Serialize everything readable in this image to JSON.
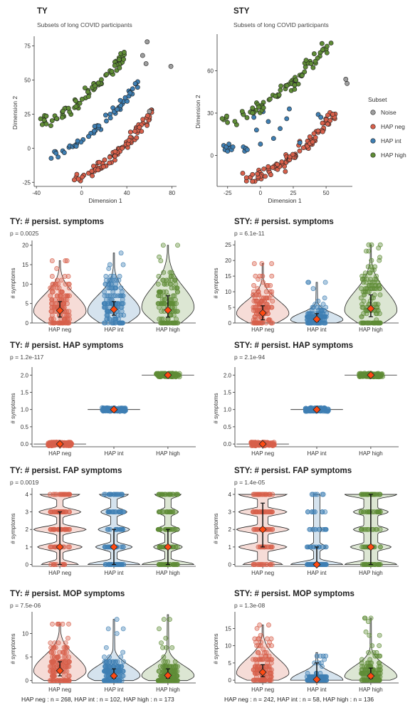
{
  "colors": {
    "noise": "#9e9e9e",
    "hap_neg": "#d8604b",
    "hap_int": "#3f7fb3",
    "hap_high": "#5f8c36",
    "mean": "#ff4a12"
  },
  "legend": {
    "title": "Subset",
    "items": [
      {
        "label": "Noise",
        "color": "#9e9e9e"
      },
      {
        "label": "HAP neg",
        "color": "#d8604b"
      },
      {
        "label": "HAP int",
        "color": "#3f7fb3"
      },
      {
        "label": "HAP high",
        "color": "#5f8c36"
      }
    ]
  },
  "footers": {
    "ty": "HAP neg : n =  268, HAP int : n =  102, HAP high : n =  173",
    "sty": "HAP neg : n =  242, HAP int : n =  58, HAP high : n =  136"
  },
  "chart_data": [
    {
      "type": "scatter",
      "title": "TY",
      "subtitle": "Subsets of long COVID participants",
      "xlabel": "Dimension 1",
      "ylabel": "Dimension 2",
      "xlim": [
        -42,
        84
      ],
      "ylim": [
        -28,
        80
      ],
      "xticks": [
        -40,
        0,
        40,
        80
      ],
      "yticks": [
        -25,
        0,
        25,
        50,
        75
      ],
      "series": [
        {
          "name": "Noise",
          "key": "noise",
          "points": [
            [
              54,
              68
            ],
            [
              57,
              62
            ],
            [
              60,
              27
            ],
            [
              58,
              78
            ],
            [
              79,
              60
            ]
          ]
        },
        {
          "name": "HAP neg",
          "key": "hap_neg",
          "curve": {
            "x0": -10,
            "y0": -22,
            "x1": 63,
            "y1": 27,
            "pow": 1.7
          },
          "n": 90,
          "spread": 2.2
        },
        {
          "name": "HAP int",
          "key": "hap_int",
          "curve": {
            "x0": -26,
            "y0": -3,
            "x1": 50,
            "y1": 47,
            "pow": 1.6
          },
          "n": 55,
          "spread": 1.8
        },
        {
          "name": "HAP high",
          "key": "hap_high",
          "curve": {
            "x0": -38,
            "y0": 19,
            "x1": 40,
            "y1": 71,
            "pow": 1.7
          },
          "n": 75,
          "spread": 2.0
        }
      ]
    },
    {
      "type": "scatter",
      "title": "STY",
      "subtitle": "Subsets of long COVID participants",
      "xlabel": "Dimension 1",
      "ylabel": "Dimension 2",
      "xlim": [
        -33,
        70
      ],
      "ylim": [
        -22,
        84
      ],
      "xticks": [
        -25,
        0,
        25,
        50
      ],
      "yticks": [
        0,
        30,
        60
      ],
      "series": [
        {
          "name": "Noise",
          "key": "noise",
          "points": [
            [
              65,
              54
            ],
            [
              66,
              51
            ]
          ]
        },
        {
          "name": "HAP neg",
          "key": "hap_neg",
          "curve": {
            "x0": -13,
            "y0": -15,
            "x1": 57,
            "y1": 30,
            "pow": 1.8
          },
          "n": 95,
          "spread": 2.2
        },
        {
          "name": "HAP int",
          "key": "hap_int",
          "points": [
            [
              -28,
              7
            ],
            [
              -27,
              4
            ],
            [
              -26,
              6
            ],
            [
              -25,
              3
            ],
            [
              -24,
              8
            ],
            [
              -23,
              5
            ],
            [
              -22,
              4
            ],
            [
              -21,
              6
            ],
            [
              -13,
              6
            ],
            [
              -12,
              3
            ],
            [
              -11,
              5
            ],
            [
              -10,
              4
            ],
            [
              -5,
              27
            ],
            [
              -3,
              18
            ],
            [
              0,
              8
            ],
            [
              2,
              31
            ],
            [
              6,
              24
            ],
            [
              10,
              12
            ],
            [
              15,
              19
            ],
            [
              20,
              26
            ],
            [
              22,
              33
            ],
            [
              30,
              9
            ],
            [
              44,
              29
            ],
            [
              46,
              27
            ]
          ]
        },
        {
          "name": "HAP high",
          "key": "hap_high",
          "curve": {
            "x0": -31,
            "y0": 25,
            "x1": 52,
            "y1": 80,
            "pow": 1.8
          },
          "n": 80,
          "spread": 2.2
        }
      ]
    },
    {
      "type": "violin",
      "title": "TY: # persist. symptoms",
      "pvalue": "p = 0.0025",
      "ylabel": "# symptoms",
      "categories": [
        "HAP neg",
        "HAP int",
        "HAP high"
      ],
      "ylim": [
        0,
        20.5
      ],
      "yticks": [
        0,
        5,
        10,
        15,
        20
      ],
      "groups": [
        {
          "key": "hap_neg",
          "median": 3,
          "q1": 1,
          "q3": 6,
          "min": 0,
          "max": 16,
          "mean": 3.2,
          "whisker_lo": 1.5,
          "whisker_hi": 5.5
        },
        {
          "key": "hap_int",
          "median": 3,
          "q1": 1,
          "q3": 6,
          "min": 0,
          "max": 18,
          "mean": 3.5,
          "whisker_lo": 2,
          "whisker_hi": 5.5
        },
        {
          "key": "hap_high",
          "median": 4,
          "q1": 2,
          "q3": 8,
          "min": 0,
          "max": 20,
          "mean": 3.3,
          "whisker_lo": 1.5,
          "whisker_hi": 7
        }
      ]
    },
    {
      "type": "violin",
      "title": "STY: # persist. symptoms",
      "pvalue": "p = 6.1e-11",
      "ylabel": "# symptoms",
      "categories": [
        "HAP neg",
        "HAP int",
        "HAP high"
      ],
      "ylim": [
        0,
        25.5
      ],
      "yticks": [
        0,
        5,
        10,
        15,
        20,
        25
      ],
      "groups": [
        {
          "key": "hap_neg",
          "median": 3,
          "q1": 1,
          "q3": 6,
          "min": 0,
          "max": 19,
          "mean": 3.2,
          "whisker_lo": 1,
          "whisker_hi": 5.5
        },
        {
          "key": "hap_int",
          "median": 1,
          "q1": 0,
          "q3": 2,
          "min": 0,
          "max": 13,
          "mean": 1.2,
          "whisker_lo": 0.5,
          "whisker_hi": 3
        },
        {
          "key": "hap_high",
          "median": 4,
          "q1": 1,
          "q3": 9,
          "min": 0,
          "max": 25,
          "mean": 4.6,
          "whisker_lo": 2,
          "whisker_hi": 9
        }
      ]
    },
    {
      "type": "violin",
      "title": "TY: # persist. HAP symptoms",
      "pvalue": "p = 1.2e-117",
      "ylabel": "# symptoms",
      "categories": [
        "HAP neg",
        "HAP int",
        "HAP high"
      ],
      "ylim": [
        -0.08,
        2.15
      ],
      "yticks": [
        0,
        0.5,
        1,
        1.5,
        2
      ],
      "flat": true,
      "groups": [
        {
          "key": "hap_neg",
          "value": 0,
          "mean": 0
        },
        {
          "key": "hap_int",
          "value": 1,
          "mean": 1
        },
        {
          "key": "hap_high",
          "value": 2,
          "mean": 2
        }
      ]
    },
    {
      "type": "violin",
      "title": "STY: # persist. HAP symptoms",
      "pvalue": "p = 2.1e-94",
      "ylabel": "# symptoms",
      "categories": [
        "HAP neg",
        "HAP int",
        "HAP high"
      ],
      "ylim": [
        -0.08,
        2.15
      ],
      "yticks": [
        0,
        0.5,
        1,
        1.5,
        2
      ],
      "flat": true,
      "groups": [
        {
          "key": "hap_neg",
          "value": 0,
          "mean": 0
        },
        {
          "key": "hap_int",
          "value": 1,
          "mean": 1
        },
        {
          "key": "hap_high",
          "value": 2,
          "mean": 2
        }
      ]
    },
    {
      "type": "violin",
      "title": "TY: # persist. FAP symptoms",
      "pvalue": "p = 0.0019",
      "ylabel": "# symptoms",
      "categories": [
        "HAP neg",
        "HAP int",
        "HAP high"
      ],
      "ylim": [
        -0.1,
        4.2
      ],
      "yticks": [
        0,
        1,
        2,
        3,
        4
      ],
      "discrete": [
        0,
        1,
        2,
        3,
        4
      ],
      "groups": [
        {
          "key": "hap_neg",
          "dens": [
            0.7,
            0.85,
            1.0,
            0.8,
            0.75
          ],
          "mean": 1,
          "whisker_lo": 0,
          "whisker_hi": 3
        },
        {
          "key": "hap_int",
          "dens": [
            1.0,
            0.7,
            0.6,
            0.5,
            0.55
          ],
          "mean": 1,
          "whisker_lo": 0,
          "whisker_hi": 2
        },
        {
          "key": "hap_high",
          "dens": [
            1.0,
            0.55,
            0.45,
            0.4,
            0.5
          ],
          "mean": 1,
          "whisker_lo": 0,
          "whisker_hi": 2
        }
      ]
    },
    {
      "type": "violin",
      "title": "STY: # persist. FAP symptoms",
      "pvalue": "p = 1.4e-05",
      "ylabel": "# symptoms",
      "categories": [
        "HAP neg",
        "HAP int",
        "HAP high"
      ],
      "ylim": [
        -0.1,
        4.2
      ],
      "yticks": [
        0,
        1,
        2,
        3,
        4
      ],
      "discrete": [
        0,
        1,
        2,
        3,
        4
      ],
      "groups": [
        {
          "key": "hap_neg",
          "dens": [
            0.45,
            0.55,
            0.6,
            0.55,
            0.55
          ],
          "mean": 2,
          "whisker_lo": 1,
          "whisker_hi": 3.5
        },
        {
          "key": "hap_int",
          "dens": [
            1.0,
            0.35,
            0.2,
            0.12,
            0.12
          ],
          "mean": 0,
          "whisker_lo": 0,
          "whisker_hi": 1
        },
        {
          "key": "hap_high",
          "dens": [
            0.45,
            0.35,
            0.3,
            0.3,
            0.45
          ],
          "mean": 1,
          "whisker_lo": 0,
          "whisker_hi": 4
        }
      ]
    },
    {
      "type": "violin",
      "title": "TY: # persist. MOP symptoms",
      "pvalue": "p = 7.5e-06",
      "ylabel": "# symptoms",
      "categories": [
        "HAP neg",
        "HAP int",
        "HAP high"
      ],
      "ylim": [
        -0.5,
        14
      ],
      "yticks": [
        0,
        5,
        10
      ],
      "groups": [
        {
          "key": "hap_neg",
          "median": 2,
          "q1": 1,
          "q3": 4,
          "min": 0,
          "max": 12,
          "mean": 2.1,
          "whisker_lo": 1,
          "whisker_hi": 4
        },
        {
          "key": "hap_int",
          "median": 1,
          "q1": 0,
          "q3": 2,
          "min": 0,
          "max": 13,
          "mean": 1.0,
          "whisker_lo": 0.5,
          "whisker_hi": 2.5
        },
        {
          "key": "hap_high",
          "median": 1,
          "q1": 0,
          "q3": 2,
          "min": 0,
          "max": 14,
          "mean": 1.1,
          "whisker_lo": 0.5,
          "whisker_hi": 2.5
        }
      ]
    },
    {
      "type": "violin",
      "title": "STY: # persist. MOP symptoms",
      "pvalue": "p = 1.3e-08",
      "ylabel": "# symptoms",
      "categories": [
        "HAP neg",
        "HAP int",
        "HAP high"
      ],
      "ylim": [
        -0.8,
        19
      ],
      "yticks": [
        0,
        5,
        10,
        15
      ],
      "groups": [
        {
          "key": "hap_neg",
          "median": 2,
          "q1": 1,
          "q3": 5,
          "min": 0,
          "max": 16,
          "mean": 2.3,
          "whisker_lo": 1,
          "whisker_hi": 4.5
        },
        {
          "key": "hap_int",
          "median": 0,
          "q1": 0,
          "q3": 1,
          "min": 0,
          "max": 8,
          "mean": 0.2,
          "whisker_lo": 0,
          "whisker_hi": 5
        },
        {
          "key": "hap_high",
          "median": 1,
          "q1": 0,
          "q3": 3,
          "min": 0,
          "max": 18,
          "mean": 1.2,
          "whisker_lo": 0.5,
          "whisker_hi": 3.5
        }
      ]
    }
  ]
}
